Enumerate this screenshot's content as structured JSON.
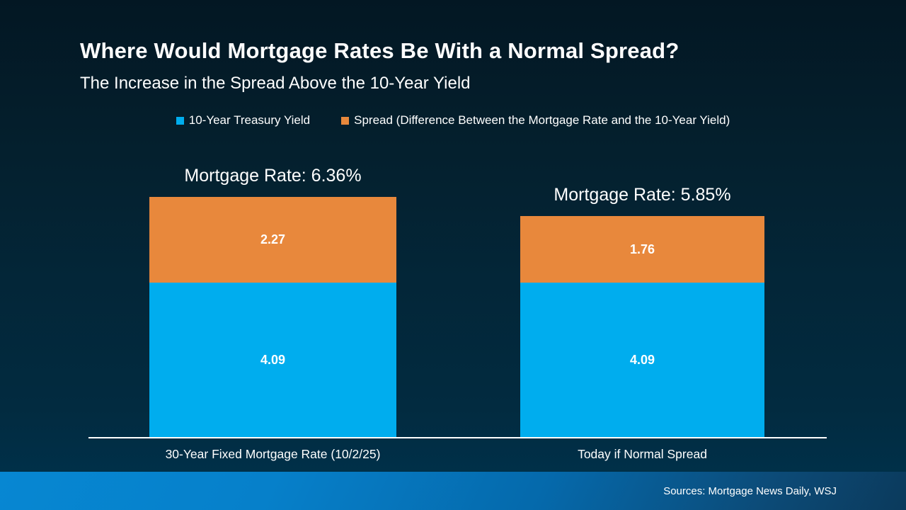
{
  "header": {
    "title": "Where Would Mortgage Rates Be With a Normal Spread?",
    "subtitle": "The Increase in the Spread Above the 10-Year Yield"
  },
  "legend": [
    {
      "label": "10-Year Treasury Yield",
      "color": "#00adee"
    },
    {
      "label": "Spread (Difference Between the Mortgage Rate and the 10-Year Yield)",
      "color": "#e8883c"
    }
  ],
  "chart_data": {
    "type": "bar",
    "subtype": "stacked",
    "title": "Where Would Mortgage Rates Be With a Normal Spread?",
    "subtitle": "The Increase in the Spread Above the 10-Year Yield",
    "categories": [
      "30-Year Fixed Mortgage Rate (10/2/25)",
      "Today if Normal Spread"
    ],
    "series": [
      {
        "name": "10-Year Treasury Yield",
        "color": "#00adee",
        "values": [
          4.09,
          4.09
        ]
      },
      {
        "name": "Spread (Difference Between the Mortgage Rate and the 10-Year Yield)",
        "color": "#e8883c",
        "values": [
          2.27,
          1.76
        ]
      }
    ],
    "totals": [
      6.36,
      5.85
    ],
    "totals_labels": [
      "Mortgage Rate: 6.36%",
      "Mortgage Rate: 5.85%"
    ],
    "xlabel": "",
    "ylabel": "",
    "ylim": [
      0,
      7
    ],
    "grid": false,
    "legend_position": "top",
    "value_labels": "inside-center"
  },
  "footer": {
    "sources": "Sources: Mortgage News Daily, WSJ"
  },
  "colors": {
    "background_top": "#031723",
    "background_bottom": "#003049",
    "bar_blue": "#00adee",
    "bar_orange": "#e8883c",
    "axis": "#ffffff",
    "text": "#ffffff",
    "footer_left": "#0787d2",
    "footer_right": "#0b3a5c"
  }
}
